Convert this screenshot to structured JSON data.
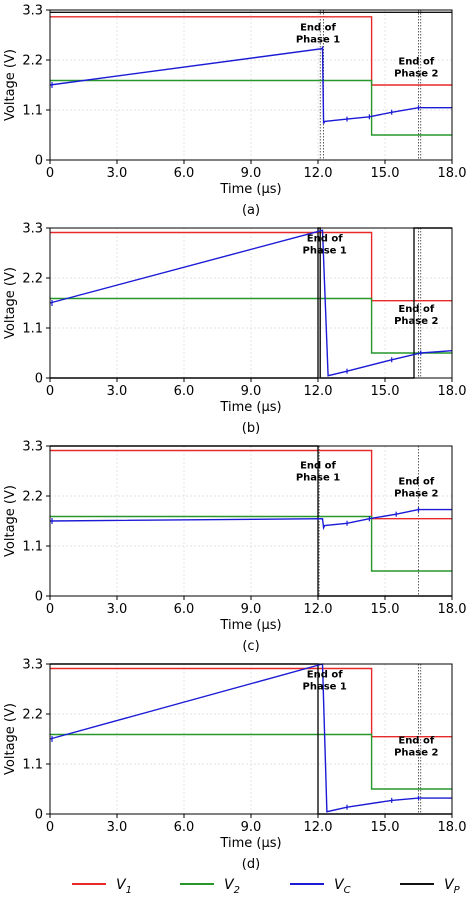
{
  "chart_data": [
    {
      "type": "line",
      "panel_label": "(a)",
      "xlabel": "Time (μs)",
      "ylabel": "Voltage (V)",
      "xlim": [
        0,
        18
      ],
      "ylim": [
        0,
        3.3
      ],
      "xticks": [
        "0",
        "3.0",
        "6.0",
        "9.0",
        "12.0",
        "15.0",
        "18.0"
      ],
      "yticks": [
        "0",
        "1.1",
        "2.2",
        "3.3"
      ],
      "grid": true,
      "markers": [
        12.1,
        12.25,
        16.5,
        16.6
      ],
      "annotations": [
        {
          "lines": [
            "End of",
            "Phase 1"
          ],
          "x": 12.0,
          "y": 2.85
        },
        {
          "lines": [
            "End of",
            "Phase 2"
          ],
          "x": 16.4,
          "y": 2.1
        }
      ],
      "series": [
        {
          "key": "V1",
          "color": "#e8292a",
          "points": [
            [
              0,
              3.15
            ],
            [
              14.4,
              3.15
            ],
            [
              14.4,
              1.65
            ],
            [
              18,
              1.65
            ]
          ]
        },
        {
          "key": "V2",
          "color": "#27972b",
          "points": [
            [
              0,
              1.75
            ],
            [
              14.4,
              1.75
            ],
            [
              14.4,
              0.55
            ],
            [
              18,
              0.55
            ]
          ]
        },
        {
          "key": "VC",
          "color": "#1b1bd6",
          "points": [
            [
              0,
              1.65
            ],
            [
              12.2,
              2.45
            ],
            [
              12.2,
              2.5
            ],
            [
              12.25,
              0.8
            ],
            [
              12.3,
              0.85
            ],
            [
              13.3,
              0.9
            ],
            [
              14.3,
              0.95
            ],
            [
              15.3,
              1.05
            ],
            [
              16.5,
              1.15
            ],
            [
              18,
              1.15
            ]
          ]
        },
        {
          "key": "VP",
          "color": "#111111",
          "points": [
            [
              0,
              3.25
            ],
            [
              18,
              3.25
            ]
          ]
        }
      ]
    },
    {
      "type": "line",
      "panel_label": "(b)",
      "xlabel": "Time (μs)",
      "ylabel": "Voltage (V)",
      "xlim": [
        0,
        18
      ],
      "ylim": [
        0,
        3.3
      ],
      "xticks": [
        "0",
        "3.0",
        "6.0",
        "9.0",
        "12.0",
        "15.0",
        "18.0"
      ],
      "yticks": [
        "0",
        "1.1",
        "2.2",
        "3.3"
      ],
      "grid": true,
      "markers": [
        12.1,
        16.5,
        16.6
      ],
      "annotations": [
        {
          "lines": [
            "End of",
            "Phase 1"
          ],
          "x": 12.3,
          "y": 3.0
        },
        {
          "lines": [
            "End of",
            "Phase 2"
          ],
          "x": 16.4,
          "y": 1.45
        }
      ],
      "series": [
        {
          "key": "V1",
          "color": "#e8292a",
          "points": [
            [
              0,
              3.2
            ],
            [
              14.4,
              3.2
            ],
            [
              14.4,
              1.7
            ],
            [
              18,
              1.7
            ]
          ]
        },
        {
          "key": "V2",
          "color": "#27972b",
          "points": [
            [
              0,
              1.75
            ],
            [
              14.4,
              1.75
            ],
            [
              14.4,
              0.55
            ],
            [
              18,
              0.55
            ]
          ]
        },
        {
          "key": "VC",
          "color": "#1b1bd6",
          "points": [
            [
              0,
              1.65
            ],
            [
              12.2,
              3.25
            ],
            [
              12.45,
              0.05
            ],
            [
              13.3,
              0.15
            ],
            [
              15.3,
              0.4
            ],
            [
              16.6,
              0.55
            ],
            [
              18,
              0.6
            ]
          ]
        },
        {
          "key": "VP",
          "color": "#111111",
          "points": [
            [
              0,
              0.0
            ],
            [
              12.0,
              0.0
            ],
            [
              12.0,
              3.3
            ],
            [
              12.1,
              3.3
            ],
            [
              12.1,
              0.0
            ],
            [
              16.3,
              0.0
            ],
            [
              16.3,
              3.3
            ],
            [
              18,
              3.3
            ]
          ]
        }
      ]
    },
    {
      "type": "line",
      "panel_label": "(c)",
      "xlabel": "Time (μs)",
      "ylabel": "Voltage (V)",
      "xlim": [
        0,
        18
      ],
      "ylim": [
        0,
        3.3
      ],
      "xticks": [
        "0",
        "3.0",
        "6.0",
        "9.0",
        "12.0",
        "15.0",
        "18.0"
      ],
      "yticks": [
        "0",
        "1.1",
        "2.2",
        "3.3"
      ],
      "grid": true,
      "markers": [
        12.05,
        16.5
      ],
      "annotations": [
        {
          "lines": [
            "End of",
            "Phase 1"
          ],
          "x": 12.0,
          "y": 2.8
        },
        {
          "lines": [
            "End of",
            "Phase 2"
          ],
          "x": 16.4,
          "y": 2.45
        }
      ],
      "series": [
        {
          "key": "V1",
          "color": "#e8292a",
          "points": [
            [
              0,
              3.2
            ],
            [
              14.4,
              3.2
            ],
            [
              14.4,
              1.7
            ],
            [
              18,
              1.7
            ]
          ]
        },
        {
          "key": "V2",
          "color": "#27972b",
          "points": [
            [
              0,
              1.75
            ],
            [
              14.4,
              1.75
            ],
            [
              14.4,
              0.55
            ],
            [
              18,
              0.55
            ]
          ]
        },
        {
          "key": "VC",
          "color": "#1b1bd6",
          "points": [
            [
              0,
              1.65
            ],
            [
              12.2,
              1.7
            ],
            [
              12.25,
              1.5
            ],
            [
              12.3,
              1.55
            ],
            [
              13.3,
              1.6
            ],
            [
              14.3,
              1.7
            ],
            [
              15.5,
              1.8
            ],
            [
              16.5,
              1.9
            ],
            [
              18,
              1.9
            ]
          ]
        },
        {
          "key": "VP",
          "color": "#111111",
          "points": [
            [
              0,
              3.3
            ],
            [
              12.0,
              3.3
            ],
            [
              12.0,
              0.0
            ],
            [
              18,
              0.0
            ]
          ]
        }
      ]
    },
    {
      "type": "line",
      "panel_label": "(d)",
      "xlabel": "Time (μs)",
      "ylabel": "Voltage (V)",
      "xlim": [
        0,
        18
      ],
      "ylim": [
        0,
        3.3
      ],
      "xticks": [
        "0",
        "3.0",
        "6.0",
        "9.0",
        "12.0",
        "15.0",
        "18.0"
      ],
      "yticks": [
        "0",
        "1.1",
        "2.2",
        "3.3"
      ],
      "grid": true,
      "markers": [
        16.5,
        16.6
      ],
      "annotations": [
        {
          "lines": [
            "End of",
            "Phase 1"
          ],
          "x": 12.3,
          "y": 3.0
        },
        {
          "lines": [
            "End of",
            "Phase 2"
          ],
          "x": 16.4,
          "y": 1.55
        }
      ],
      "series": [
        {
          "key": "V1",
          "color": "#e8292a",
          "points": [
            [
              0,
              3.2
            ],
            [
              14.4,
              3.2
            ],
            [
              14.4,
              1.7
            ],
            [
              18,
              1.7
            ]
          ]
        },
        {
          "key": "V2",
          "color": "#27972b",
          "points": [
            [
              0,
              1.75
            ],
            [
              14.4,
              1.75
            ],
            [
              14.4,
              0.55
            ],
            [
              18,
              0.55
            ]
          ]
        },
        {
          "key": "VC",
          "color": "#1b1bd6",
          "points": [
            [
              0,
              1.65
            ],
            [
              12.2,
              3.3
            ],
            [
              12.4,
              0.05
            ],
            [
              13.3,
              0.15
            ],
            [
              15.3,
              0.3
            ],
            [
              16.5,
              0.35
            ],
            [
              18,
              0.35
            ]
          ]
        },
        {
          "key": "VP",
          "color": "#111111",
          "points": [
            [
              0,
              3.3
            ],
            [
              12.0,
              3.3
            ],
            [
              12.0,
              0.0
            ],
            [
              18,
              0.0
            ]
          ]
        }
      ]
    }
  ],
  "legend": [
    {
      "key": "V1",
      "base": "V",
      "sub": "1",
      "color": "#e8292a"
    },
    {
      "key": "V2",
      "base": "V",
      "sub": "2",
      "color": "#27972b"
    },
    {
      "key": "VC",
      "base": "V",
      "sub": "C",
      "color": "#1b1bd6"
    },
    {
      "key": "VP",
      "base": "V",
      "sub": "P",
      "color": "#111111"
    }
  ]
}
